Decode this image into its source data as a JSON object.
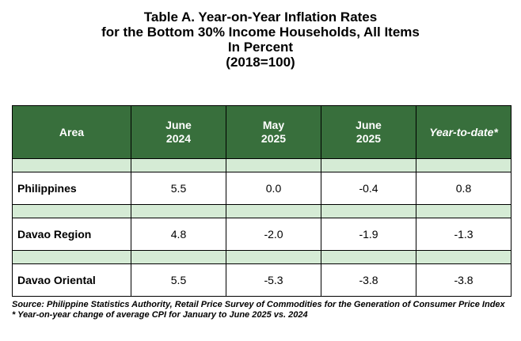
{
  "title": {
    "line1": "Table A. Year-on-Year Inflation Rates",
    "line2": "for the Bottom 30% Income Households, All Items",
    "line3": "In Percent",
    "line4": "(2018=100)"
  },
  "table": {
    "headers": [
      {
        "line1": "Area",
        "line2": ""
      },
      {
        "line1": "June",
        "line2": "2024"
      },
      {
        "line1": "May",
        "line2": "2025"
      },
      {
        "line1": "June",
        "line2": "2025"
      },
      {
        "line1": "Year-to-date*",
        "line2": ""
      }
    ],
    "rows": [
      {
        "area": "Philippines",
        "values": [
          "5.5",
          "0.0",
          "-0.4",
          "0.8"
        ]
      },
      {
        "area": "Davao Region",
        "values": [
          "4.8",
          "-2.0",
          "-1.9",
          "-1.3"
        ]
      },
      {
        "area": "Davao Oriental",
        "values": [
          "5.5",
          "-5.3",
          "-3.8",
          "-3.8"
        ]
      }
    ]
  },
  "notes": {
    "source": "Source: Philippine Statistics Authority, Retail Price Survey of Commodities for the Generation of Consumer Price Index",
    "footnote": "* Year-on-year change of average CPI for January to June 2025 vs. 2024"
  },
  "colors": {
    "header_bg": "#386F3C",
    "spacer_bg": "#D5EBD5"
  }
}
